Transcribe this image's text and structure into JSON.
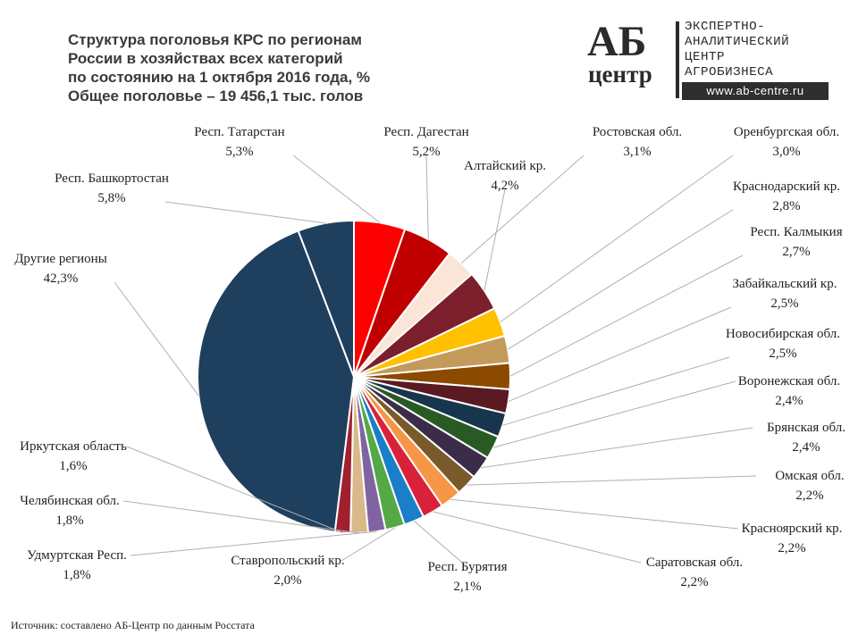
{
  "title_lines": [
    "Структура поголовья КРС по регионам",
    "России в хозяйствах всех категорий",
    "по состоянию на 1 октября 2016 года, %",
    "Общее поголовье – 19 456,1 тыс. голов"
  ],
  "logo": {
    "mark_top": "АБ",
    "mark_bottom": "центр",
    "lines": [
      "ЭКСПЕРТНО-",
      "АНАЛИТИЧЕСКИЙ",
      "ЦЕНТР",
      "АГРОБИЗНЕСА"
    ],
    "url": "www.ab-centre.ru"
  },
  "source": "Источник: составлено АБ-Центр по данным Росстата",
  "chart_data": {
    "type": "pie",
    "title": "Структура поголовья КРС по регионам России в хозяйствах всех категорий по состоянию на 1 октября 2016 года, %",
    "slices": [
      {
        "label": "Респ. Татарстан",
        "value": 5.3,
        "display": "5,3%",
        "color": "#ff0000"
      },
      {
        "label": "Респ. Дагестан",
        "value": 5.2,
        "display": "5,2%",
        "color": "#c00000"
      },
      {
        "label": "Ростовская обл.",
        "value": 3.1,
        "display": "3,1%",
        "color": "#fbe5d6"
      },
      {
        "label": "Алтайский кр.",
        "value": 4.2,
        "display": "4,2%",
        "color": "#7b1f2c"
      },
      {
        "label": "Оренбургская обл.",
        "value": 3.0,
        "display": "3,0%",
        "color": "#ffc000"
      },
      {
        "label": "Краснодарский кр.",
        "value": 2.8,
        "display": "2,8%",
        "color": "#c49a5a"
      },
      {
        "label": "Респ. Калмыкия",
        "value": 2.7,
        "display": "2,7%",
        "color": "#8b4a00"
      },
      {
        "label": "Забайкальский кр.",
        "value": 2.5,
        "display": "2,5%",
        "color": "#5a1a22"
      },
      {
        "label": "Новосибирская обл.",
        "value": 2.5,
        "display": "2,5%",
        "color": "#17354d"
      },
      {
        "label": "Воронежская обл.",
        "value": 2.4,
        "display": "2,4%",
        "color": "#2a5a24"
      },
      {
        "label": "Брянская обл.",
        "value": 2.4,
        "display": "2,4%",
        "color": "#3b2d4a"
      },
      {
        "label": "Омская обл.",
        "value": 2.2,
        "display": "2,2%",
        "color": "#7a5a2a"
      },
      {
        "label": "Красноярский кр.",
        "value": 2.2,
        "display": "2,2%",
        "color": "#f79646"
      },
      {
        "label": "Саратовская обл.",
        "value": 2.2,
        "display": "2,2%",
        "color": "#d9213a"
      },
      {
        "label": "Респ. Бурятия",
        "value": 2.1,
        "display": "2,1%",
        "color": "#1a7ec8"
      },
      {
        "label": "Ставропольский кр.",
        "value": 2.0,
        "display": "2,0%",
        "color": "#54a846"
      },
      {
        "label": "Удмуртская Респ.",
        "value": 1.8,
        "display": "1,8%",
        "color": "#8064a2"
      },
      {
        "label": "Челябинская обл.",
        "value": 1.8,
        "display": "1,8%",
        "color": "#d9b98a"
      },
      {
        "label": "Иркутская область",
        "value": 1.6,
        "display": "1,6%",
        "color": "#a02030"
      },
      {
        "label": "Другие регионы",
        "value": 42.3,
        "display": "42,3%",
        "color": "#1f3f5f"
      },
      {
        "label": "Респ. Башкортостан",
        "value": 5.8,
        "display": "5,8%",
        "color": "#1f3f5f"
      }
    ]
  }
}
